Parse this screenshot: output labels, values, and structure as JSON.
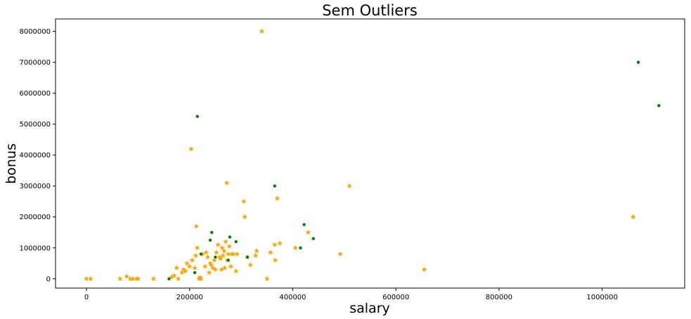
{
  "chart_data": {
    "type": "scatter",
    "title": "Sem Outliers",
    "xlabel": "salary",
    "ylabel": "bonus",
    "xlim": [
      -60000,
      1160000
    ],
    "ylim": [
      -300000,
      8400000
    ],
    "x_ticks": [
      0,
      200000,
      400000,
      600000,
      800000,
      1000000
    ],
    "x_tick_labels": [
      "0",
      "200000",
      "400000",
      "600000",
      "800000",
      "1000000"
    ],
    "y_ticks": [
      0,
      1000000,
      2000000,
      3000000,
      4000000,
      5000000,
      6000000,
      7000000,
      8000000
    ],
    "y_tick_labels": [
      "0",
      "1000000",
      "2000000",
      "3000000",
      "4000000",
      "5000000",
      "6000000",
      "7000000",
      "8000000"
    ],
    "grid": false,
    "series": [
      {
        "marker": "star",
        "color": "#ffa500",
        "points": [
          [
            0,
            0
          ],
          [
            8000,
            0
          ],
          [
            65000,
            0
          ],
          [
            78000,
            80000
          ],
          [
            85000,
            0
          ],
          [
            90000,
            0
          ],
          [
            97000,
            0
          ],
          [
            100000,
            0
          ],
          [
            130000,
            0
          ],
          [
            165000,
            50000
          ],
          [
            170000,
            100000
          ],
          [
            175000,
            350000
          ],
          [
            178000,
            0
          ],
          [
            185000,
            200000
          ],
          [
            188000,
            300000
          ],
          [
            192000,
            250000
          ],
          [
            195000,
            500000
          ],
          [
            200000,
            400000
          ],
          [
            203000,
            4200000
          ],
          [
            205000,
            600000
          ],
          [
            210000,
            350000
          ],
          [
            212000,
            750000
          ],
          [
            213000,
            1700000
          ],
          [
            215000,
            1000000
          ],
          [
            218000,
            0
          ],
          [
            220000,
            50000
          ],
          [
            222000,
            0
          ],
          [
            225000,
            800000
          ],
          [
            230000,
            400000
          ],
          [
            232000,
            850000
          ],
          [
            235000,
            700000
          ],
          [
            238000,
            200000
          ],
          [
            240000,
            500000
          ],
          [
            242000,
            450000
          ],
          [
            245000,
            350000
          ],
          [
            248000,
            600000
          ],
          [
            250000,
            300000
          ],
          [
            252000,
            850000
          ],
          [
            255000,
            1100000
          ],
          [
            258000,
            700000
          ],
          [
            260000,
            650000
          ],
          [
            262000,
            300000
          ],
          [
            263000,
            1000000
          ],
          [
            265000,
            750000
          ],
          [
            267000,
            900000
          ],
          [
            268000,
            350000
          ],
          [
            270000,
            1200000
          ],
          [
            272000,
            3100000
          ],
          [
            273000,
            600000
          ],
          [
            275000,
            800000
          ],
          [
            277000,
            1050000
          ],
          [
            280000,
            400000
          ],
          [
            282000,
            800000
          ],
          [
            285000,
            800000
          ],
          [
            290000,
            250000
          ],
          [
            292000,
            800000
          ],
          [
            305000,
            2500000
          ],
          [
            307000,
            2000000
          ],
          [
            312000,
            700000
          ],
          [
            318000,
            450000
          ],
          [
            328000,
            750000
          ],
          [
            330000,
            900000
          ],
          [
            340000,
            8000000
          ],
          [
            350000,
            0
          ],
          [
            357000,
            850000
          ],
          [
            365000,
            1100000
          ],
          [
            366000,
            600000
          ],
          [
            370000,
            2600000
          ],
          [
            375000,
            1150000
          ],
          [
            405000,
            1000000
          ],
          [
            430000,
            1500000
          ],
          [
            492000,
            800000
          ],
          [
            510000,
            3000000
          ],
          [
            655000,
            300000
          ],
          [
            1060000,
            2000000
          ]
        ]
      },
      {
        "marker": "dot",
        "color": "#008000",
        "points": [
          [
            160000,
            0
          ],
          [
            210000,
            200000
          ],
          [
            215000,
            5250000
          ],
          [
            222000,
            800000
          ],
          [
            240000,
            1250000
          ],
          [
            243000,
            1500000
          ],
          [
            250000,
            700000
          ],
          [
            275000,
            600000
          ],
          [
            278000,
            1350000
          ],
          [
            290000,
            1200000
          ],
          [
            312000,
            700000
          ],
          [
            365000,
            3000000
          ],
          [
            415000,
            1000000
          ],
          [
            422000,
            1750000
          ],
          [
            440000,
            1300000
          ],
          [
            1070000,
            7000000
          ],
          [
            1110000,
            5600000
          ]
        ]
      }
    ]
  }
}
